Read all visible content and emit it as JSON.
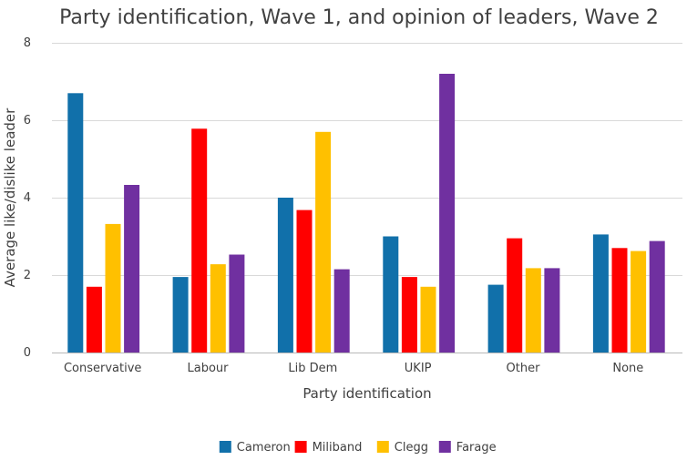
{
  "chart_data": {
    "type": "bar",
    "title": "Party identification, Wave 1, and opinion of leaders, Wave 2",
    "xlabel": "Party identification",
    "ylabel": "Average like/dislike leader",
    "ylim": [
      0,
      8
    ],
    "yticks": [
      0,
      2,
      4,
      6,
      8
    ],
    "grid": true,
    "legend_position": "bottom",
    "categories": [
      "Conservative",
      "Labour",
      "Lib Dem",
      "UKIP",
      "Other",
      "None"
    ],
    "series": [
      {
        "name": "Cameron",
        "color": "#1170AA",
        "values": [
          6.7,
          1.95,
          4.0,
          3.0,
          1.75,
          3.05
        ]
      },
      {
        "name": "Miliband",
        "color": "#FF0000",
        "values": [
          1.7,
          5.78,
          3.68,
          1.95,
          2.95,
          2.7
        ]
      },
      {
        "name": "Clegg",
        "color": "#FFC000",
        "values": [
          3.32,
          2.28,
          5.7,
          1.7,
          2.18,
          2.62
        ]
      },
      {
        "name": "Farage",
        "color": "#7030A0",
        "values": [
          4.33,
          2.53,
          2.15,
          7.2,
          2.18,
          2.88
        ]
      }
    ]
  }
}
